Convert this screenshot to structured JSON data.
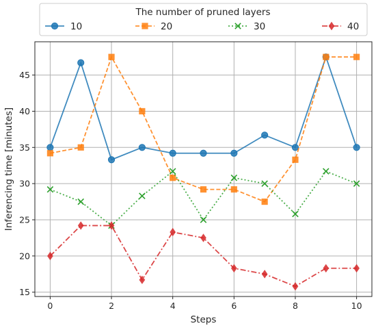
{
  "chart_data": {
    "type": "line",
    "title": "",
    "xlabel": "Steps",
    "ylabel": "Inferencing time [minutes]",
    "xlim": [
      -0.5,
      10.5
    ],
    "ylim": [
      14.4,
      49.6
    ],
    "xticks": [
      0,
      2,
      4,
      6,
      8,
      10
    ],
    "yticks": [
      15,
      20,
      25,
      30,
      35,
      40,
      45
    ],
    "grid": true,
    "legend": {
      "title": "The number of pruned layers",
      "placement": "top-center",
      "columns": 4
    },
    "x": [
      0,
      1,
      2,
      3,
      4,
      5,
      6,
      7,
      8,
      9,
      10
    ],
    "series": [
      {
        "name": "10",
        "color": "#1f77b4",
        "marker": "circle",
        "linestyle": "solid",
        "values": [
          35.0,
          46.7,
          33.3,
          35.0,
          34.2,
          34.2,
          34.2,
          36.7,
          35.0,
          47.5,
          35.0
        ]
      },
      {
        "name": "20",
        "color": "#ff7f0e",
        "marker": "square",
        "linestyle": "dashed",
        "values": [
          34.2,
          35.0,
          47.5,
          40.0,
          30.8,
          29.2,
          29.2,
          27.5,
          33.3,
          47.5,
          47.5
        ]
      },
      {
        "name": "30",
        "color": "#2ca02c",
        "marker": "x",
        "linestyle": "dotted",
        "values": [
          29.2,
          27.5,
          24.2,
          28.3,
          31.7,
          25.0,
          30.8,
          30.0,
          25.8,
          31.7,
          30.0
        ]
      },
      {
        "name": "40",
        "color": "#d62728",
        "marker": "diamond",
        "linestyle": "dashdot",
        "values": [
          20.0,
          24.2,
          24.2,
          16.7,
          23.3,
          22.5,
          18.3,
          17.5,
          15.8,
          18.3,
          18.3
        ]
      }
    ]
  }
}
